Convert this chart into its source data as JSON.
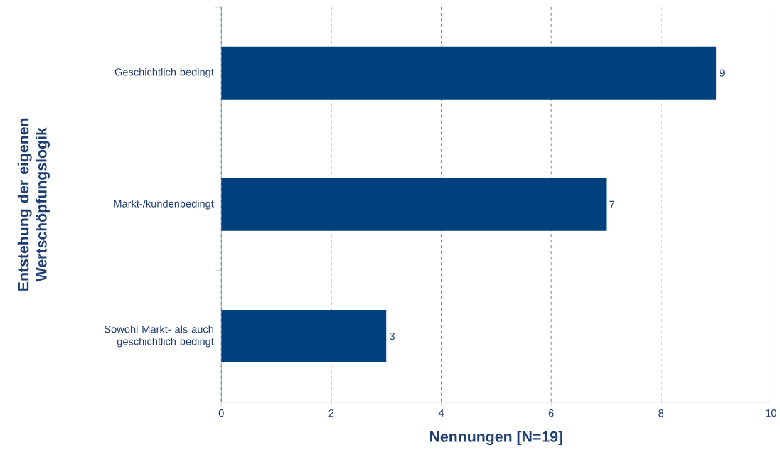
{
  "chart_data": {
    "type": "bar",
    "orientation": "horizontal",
    "categories": [
      "Geschichtlich bedingt",
      "Markt-/kundenbedingt",
      "Sowohl Markt- als auch geschichtlich bedingt"
    ],
    "values": [
      9,
      7,
      3
    ],
    "color": "#00407f",
    "xlim": [
      0,
      10
    ],
    "xticks": [
      0,
      2,
      4,
      6,
      8,
      10
    ],
    "xlabel": "Nennungen [N=19]",
    "ylabel": "Entstehung der eigenen Wertschöpfungslogik",
    "grid": "x",
    "data_labels": true
  }
}
